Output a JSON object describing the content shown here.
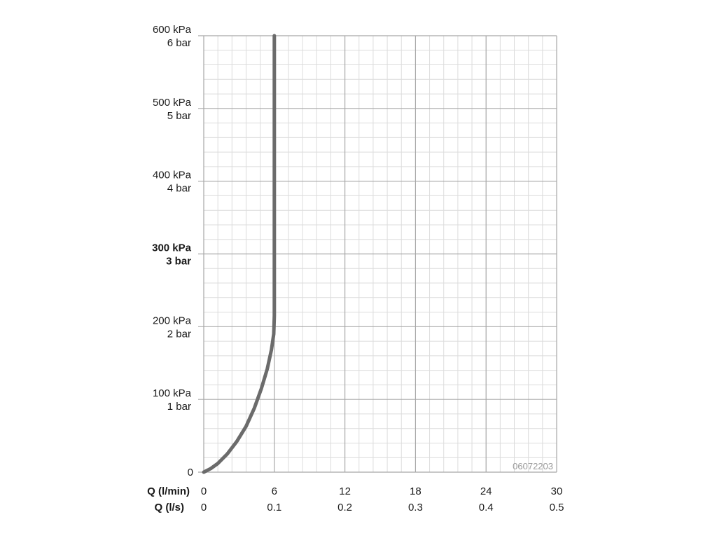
{
  "chart_data": {
    "type": "line",
    "series": [
      {
        "x": [
          0,
          0.6,
          1.2,
          2.0,
          2.8,
          3.6,
          4.3,
          4.9,
          5.4,
          5.75,
          5.95,
          6.0,
          6.0,
          6.0,
          6.0,
          6.0
        ],
        "y": [
          0,
          5,
          12,
          25,
          42,
          63,
          88,
          115,
          142,
          168,
          190,
          215,
          300,
          400,
          500,
          600
        ]
      }
    ],
    "x_primary": {
      "label": "Q (l/min)",
      "ticks": [
        "0",
        "6",
        "12",
        "18",
        "24",
        "30"
      ],
      "range": [
        0,
        30
      ]
    },
    "x_secondary": {
      "label": "Q (l/s)",
      "ticks": [
        "0",
        "0.1",
        "0.2",
        "0.3",
        "0.4",
        "0.5"
      ]
    },
    "y_axis": {
      "range": [
        0,
        600
      ],
      "unit": "kPa",
      "ticks": [
        {
          "value": 0,
          "kpa": "0",
          "bar": "",
          "bold": false
        },
        {
          "value": 100,
          "kpa": "100 kPa",
          "bar": "1 bar",
          "bold": false
        },
        {
          "value": 200,
          "kpa": "200 kPa",
          "bar": "2 bar",
          "bold": false
        },
        {
          "value": 300,
          "kpa": "300 kPa",
          "bar": "3 bar",
          "bold": true
        },
        {
          "value": 400,
          "kpa": "400 kPa",
          "bar": "4 bar",
          "bold": false
        },
        {
          "value": 500,
          "kpa": "500 kPa",
          "bar": "5 bar",
          "bold": false
        },
        {
          "value": 600,
          "kpa": "600 kPa",
          "bar": "6 bar",
          "bold": false
        }
      ]
    },
    "grid": true,
    "minor_divisions": 5,
    "line_color": "#6b6b6b",
    "major_grid_color": "#a8a8a8",
    "minor_grid_color": "#dcdcdc",
    "code": "06072203"
  }
}
